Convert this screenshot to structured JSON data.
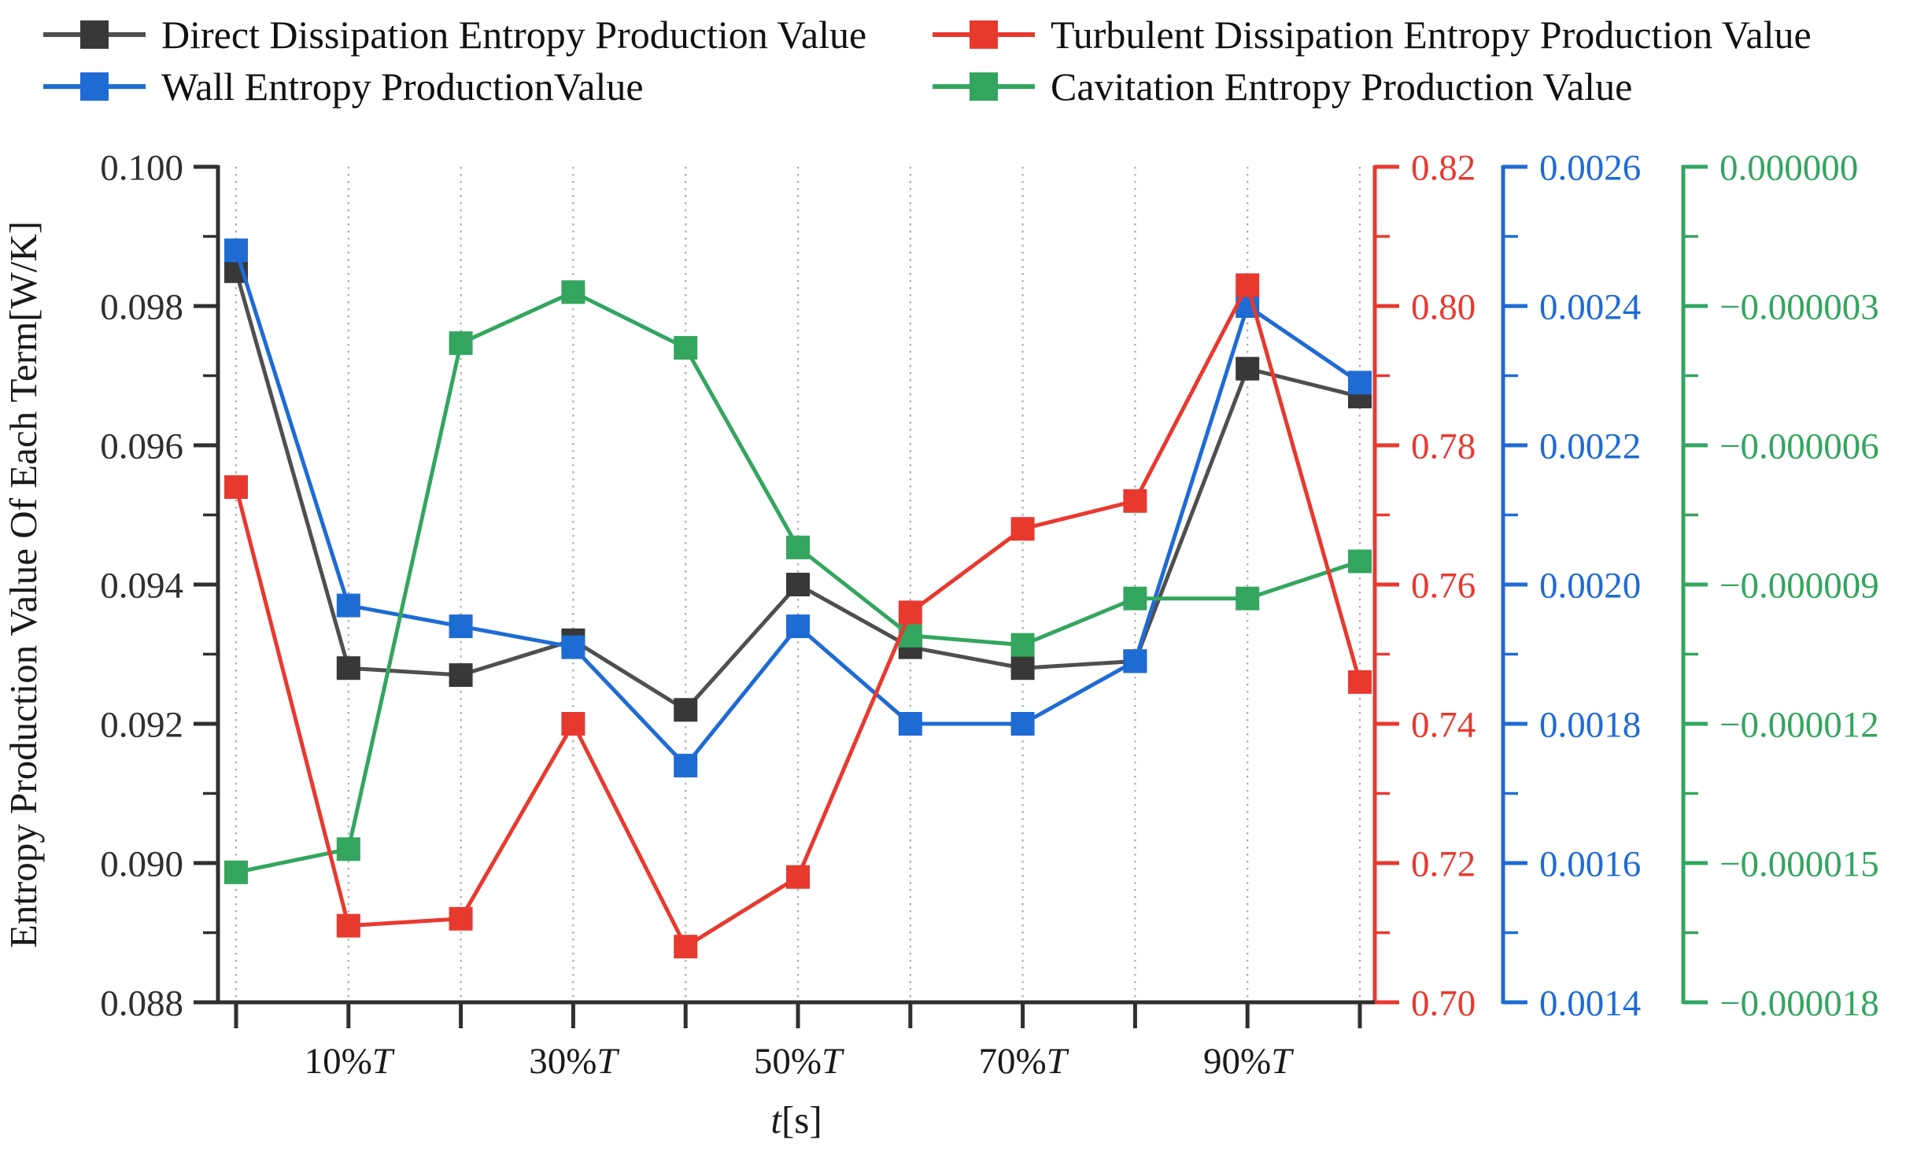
{
  "chart_data": {
    "type": "line",
    "title": "",
    "xlabel": {
      "italic": "t",
      "rest": "[s]"
    },
    "x_tick_count": 11,
    "x_tick_labels": [
      {
        "at": 1,
        "text": "10%",
        "italic_suffix": "T"
      },
      {
        "at": 3,
        "text": "30%",
        "italic_suffix": "T"
      },
      {
        "at": 5,
        "text": "50%",
        "italic_suffix": "T"
      },
      {
        "at": 7,
        "text": "70%",
        "italic_suffix": "T"
      },
      {
        "at": 9,
        "text": "90%",
        "italic_suffix": "T"
      }
    ],
    "grid": "vertical-dotted",
    "legend_position": "top",
    "axes": {
      "left": {
        "title": "Entropy Production Value Of Each Term[W/K]",
        "min": 0.088,
        "max": 0.1,
        "major_step": 0.002,
        "minor_step": 0.001,
        "color": "#2f2f2f",
        "tick_labels": [
          "0.100",
          "0.098",
          "0.096",
          "0.094",
          "0.092",
          "0.090",
          "0.088"
        ]
      },
      "red": {
        "min": 0.7,
        "max": 0.82,
        "major_step": 0.02,
        "minor_step": 0.01,
        "color": "#e8392f",
        "tick_labels": [
          "0.82",
          "0.80",
          "0.78",
          "0.76",
          "0.74",
          "0.72",
          "0.70"
        ]
      },
      "blue": {
        "min": 0.0014,
        "max": 0.0026,
        "major_step": 0.0002,
        "minor_step": 0.0001,
        "color": "#1e6bd4",
        "tick_labels": [
          "0.0026",
          "0.0024",
          "0.0022",
          "0.0020",
          "0.0018",
          "0.0016",
          "0.0014"
        ]
      },
      "green": {
        "min": -1.8e-05,
        "max": 0.0,
        "major_step": 3e-06,
        "minor_step": 1.5e-06,
        "color": "#33a55f",
        "tick_labels": [
          "0.000000",
          "−0.000003",
          "−0.000006",
          "−0.000009",
          "−0.000012",
          "−0.000015",
          "−0.000018"
        ]
      }
    },
    "series": [
      {
        "name": "Direct Dissipation Entropy Production Value",
        "axis": "left",
        "color": "#383838",
        "line_color": "#4f4f4f",
        "values": [
          0.0985,
          0.0928,
          0.0927,
          0.0932,
          0.0922,
          0.094,
          0.0931,
          0.0928,
          0.0929,
          0.0971,
          0.0967
        ]
      },
      {
        "name": "Turbulent Dissipation Entropy Production Value",
        "axis": "red",
        "color": "#e8392f",
        "line_color": "#e8392f",
        "values": [
          0.774,
          0.711,
          0.712,
          0.74,
          0.708,
          0.718,
          0.756,
          0.768,
          0.772,
          0.803,
          0.746
        ]
      },
      {
        "name": "Wall Entropy ProductionValue",
        "axis": "blue",
        "color": "#1e6bd4",
        "line_color": "#1e6bd4",
        "values": [
          0.00248,
          0.00197,
          0.00194,
          0.00191,
          0.00174,
          0.00194,
          0.0018,
          0.0018,
          0.00189,
          0.0024,
          0.00229
        ]
      },
      {
        "name": "Cavitation Entropy Production Value",
        "axis": "green",
        "color": "#33a55f",
        "line_color": "#33a55f",
        "values": [
          -1.52e-05,
          -1.47e-05,
          -3.8e-06,
          -2.7e-06,
          -3.9e-06,
          -8.2e-06,
          -1.01e-05,
          -1.03e-05,
          -9.3e-06,
          -9.3e-06,
          -8.5e-06
        ]
      }
    ],
    "legend_grid_order": [
      0,
      1,
      2,
      3
    ]
  }
}
